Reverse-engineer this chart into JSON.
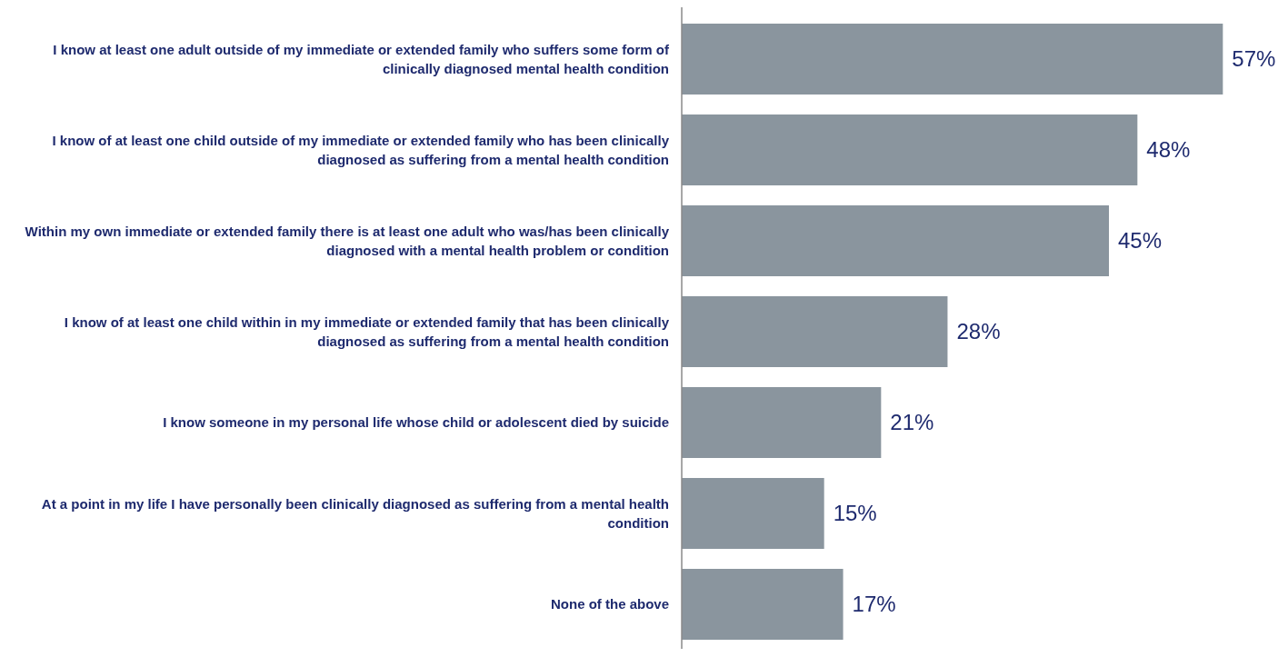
{
  "chart_data": {
    "type": "bar",
    "orientation": "horizontal",
    "categories": [
      "I know at least one adult outside of my immediate or extended family who suffers some form of clinically diagnosed mental health condition",
      "I know of at least one child outside of my immediate or extended family who has been clinically diagnosed as suffering from a mental health condition",
      "Within my own immediate or extended family there is at least one adult who was/has been clinically diagnosed with a mental health problem or condition",
      "I know of at least one child within in my immediate or extended family that has been clinically diagnosed as suffering from a mental health condition",
      "I know someone in my personal life whose child or adolescent died by suicide",
      "At a point in my life I have personally been clinically diagnosed as suffering from a mental health condition",
      "None of the above"
    ],
    "values": [
      57,
      48,
      45,
      28,
      21,
      15,
      17
    ],
    "value_labels": [
      "57%",
      "48%",
      "45%",
      "28%",
      "21%",
      "15%",
      "17%"
    ],
    "color": "#8a959e",
    "xlim": [
      0,
      63
    ]
  }
}
